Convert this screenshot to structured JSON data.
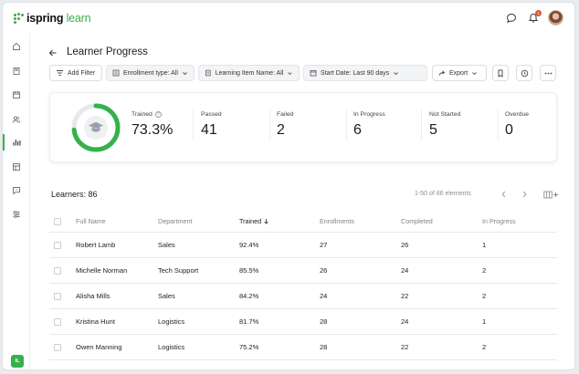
{
  "app": {
    "logo_prefix": "ispring",
    "logo_suffix": "learn",
    "notification_count": "1",
    "user_initials": "IL"
  },
  "header": {
    "title": "Learner Progress"
  },
  "filters": {
    "add_filter": "Add Filter",
    "enrollment_type": "Enrollment type: All",
    "learning_item": "Learning Item Name: All",
    "start_date": "Start Date: Last 90 days",
    "export": "Export"
  },
  "summary": {
    "trained_pct": 73.3,
    "metrics": [
      {
        "label": "Trained",
        "value": "73.3%"
      },
      {
        "label": "Passed",
        "value": "41"
      },
      {
        "label": "Failed",
        "value": "2"
      },
      {
        "label": "In Progress",
        "value": "6"
      },
      {
        "label": "Not Started",
        "value": "5"
      },
      {
        "label": "Overdue",
        "value": "0"
      }
    ]
  },
  "learners": {
    "title": "Learners: 86",
    "pager_text": "1-50 of 86 elements",
    "columns": [
      "Full Name",
      "Department",
      "Trained",
      "Enrollments",
      "Completed",
      "In Progress"
    ],
    "sorted_column": "Trained",
    "rows": [
      {
        "name": "Robert Lamb",
        "department": "Sales",
        "trained": "92.4%",
        "enrollments": "27",
        "completed": "26",
        "in_progress": "1"
      },
      {
        "name": "Michelle Norman",
        "department": "Tech Support",
        "trained": "85.5%",
        "enrollments": "26",
        "completed": "24",
        "in_progress": "2"
      },
      {
        "name": "Alisha Mills",
        "department": "Sales",
        "trained": "84.2%",
        "enrollments": "24",
        "completed": "22",
        "in_progress": "2"
      },
      {
        "name": "Kristina Hunt",
        "department": "Logistics",
        "trained": "81.7%",
        "enrollments": "28",
        "completed": "24",
        "in_progress": "1"
      },
      {
        "name": "Owen Manning",
        "department": "Logistics",
        "trained": "75.2%",
        "enrollments": "28",
        "completed": "22",
        "in_progress": "2"
      }
    ]
  },
  "colors": {
    "accent": "#34b24a",
    "ring_track": "#e6e8ec",
    "badge": "#e8523a"
  },
  "icons": {
    "sidebar": [
      "home-icon",
      "book-icon",
      "calendar-icon",
      "users-icon",
      "reports-icon",
      "gradebook-icon",
      "message-icon",
      "settings-sliders-icon"
    ]
  }
}
